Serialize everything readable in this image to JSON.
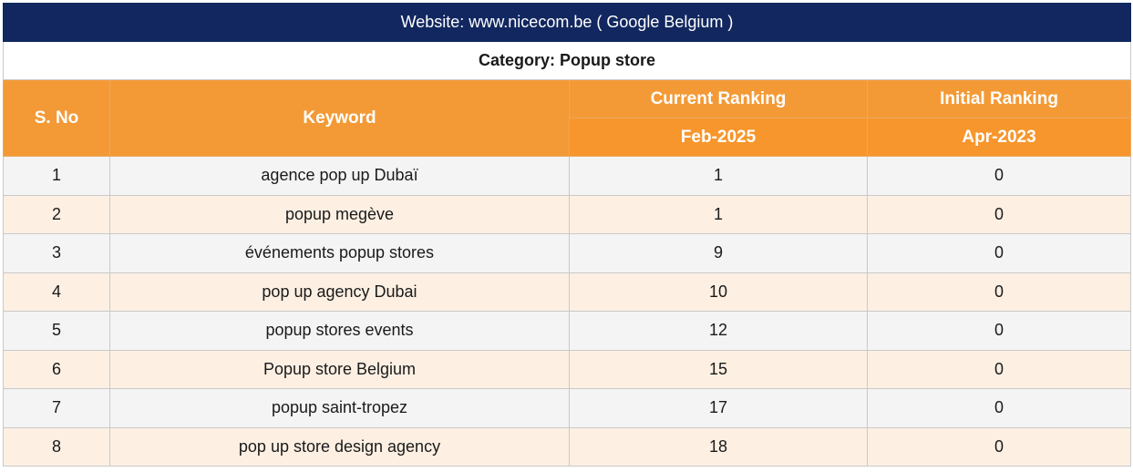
{
  "title": "Website: www.nicecom.be ( Google Belgium )",
  "category": "Category: Popup store",
  "columns": {
    "sno": "S. No",
    "keyword": "Keyword",
    "current": "Current Ranking",
    "initial": "Initial Ranking",
    "current_date": "Feb-2025",
    "initial_date": "Apr-2023"
  },
  "rows": [
    {
      "sno": "1",
      "keyword": "agence pop up Dubaï",
      "current": "1",
      "initial": "0"
    },
    {
      "sno": "2",
      "keyword": "popup megève",
      "current": "1",
      "initial": "0"
    },
    {
      "sno": "3",
      "keyword": "événements popup stores",
      "current": "9",
      "initial": "0"
    },
    {
      "sno": "4",
      "keyword": "pop up agency Dubai",
      "current": "10",
      "initial": "0"
    },
    {
      "sno": "5",
      "keyword": "popup stores events",
      "current": "12",
      "initial": "0"
    },
    {
      "sno": "6",
      "keyword": "Popup store Belgium",
      "current": "15",
      "initial": "0"
    },
    {
      "sno": "7",
      "keyword": "popup saint-tropez",
      "current": "17",
      "initial": "0"
    },
    {
      "sno": "8",
      "keyword": "pop up store design agency",
      "current": "18",
      "initial": "0"
    }
  ],
  "colors": {
    "title_bg": "#12275f",
    "header_bg": "#f39a36",
    "row_odd": "#f4f4f4",
    "row_even": "#fdf0e3"
  }
}
